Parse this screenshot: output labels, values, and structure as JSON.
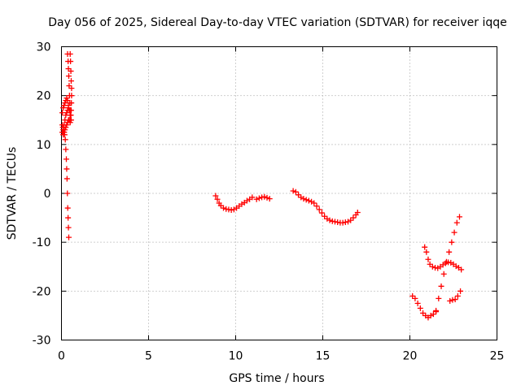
{
  "chart_data": {
    "type": "scatter",
    "title": "Day 056 of 2025, Sidereal Day-to-day VTEC variation (SDTVAR) for receiver iqqe",
    "xlabel": "GPS time / hours",
    "ylabel": "SDTVAR / TECUs",
    "xlim": [
      0,
      25
    ],
    "ylim": [
      -30,
      30
    ],
    "xticks": [
      "0",
      "5",
      "10",
      "15",
      "20",
      "25"
    ],
    "yticks": [
      "-30",
      "-20",
      "-10",
      "0",
      "10",
      "20",
      "30"
    ],
    "grid": true,
    "marker": "plus",
    "color": "#ff0000",
    "series": [
      {
        "name": "early-spike-a",
        "x": [
          0.35,
          0.38,
          0.4,
          0.42,
          0.44,
          0.46,
          0.48,
          0.5,
          0.52,
          0.55
        ],
        "y": [
          28.5,
          27,
          25.5,
          24,
          22,
          20,
          18.5,
          17,
          16,
          15
        ]
      },
      {
        "name": "early-spike-b",
        "x": [
          0.5,
          0.52,
          0.54,
          0.56,
          0.58,
          0.58,
          0.57,
          0.56,
          0.54,
          0.52
        ],
        "y": [
          28.5,
          27,
          25,
          23,
          21.5,
          20,
          18.5,
          17,
          16,
          15
        ]
      },
      {
        "name": "early-spike-c",
        "x": [
          0.05,
          0.1,
          0.15,
          0.2,
          0.25,
          0.3,
          0.35,
          0.4,
          0.45,
          0.5,
          0.55
        ],
        "y": [
          16.5,
          17.5,
          18,
          18.5,
          19,
          19.5,
          19,
          18,
          17,
          16,
          15
        ]
      },
      {
        "name": "early-spike-d",
        "x": [
          0.05,
          0.1,
          0.15,
          0.2,
          0.25,
          0.3,
          0.35,
          0.4,
          0.45,
          0.5
        ],
        "y": [
          12.5,
          13,
          14,
          15,
          16,
          16.5,
          17,
          17.5,
          17,
          16
        ]
      },
      {
        "name": "early-spike-e",
        "x": [
          0.05,
          0.08,
          0.12,
          0.15,
          0.18,
          0.22,
          0.25,
          0.28,
          0.3,
          0.32,
          0.34,
          0.36,
          0.38,
          0.4,
          0.42
        ],
        "y": [
          14,
          13.5,
          13,
          12.5,
          12,
          11,
          9,
          7,
          5,
          3,
          0,
          -3,
          -5,
          -7,
          -9
        ]
      },
      {
        "name": "early-spike-f",
        "x": [
          0.1,
          0.15,
          0.2,
          0.25,
          0.3,
          0.35,
          0.4,
          0.45,
          0.5
        ],
        "y": [
          12,
          12.5,
          13,
          13.5,
          14,
          14.5,
          15,
          15,
          14.5
        ]
      },
      {
        "name": "segment-9h",
        "x": [
          8.85,
          8.95,
          9.05,
          9.15,
          9.3,
          9.45,
          9.6,
          9.75,
          9.9,
          10.05,
          10.2,
          10.35,
          10.5,
          10.65,
          10.8,
          10.95
        ],
        "y": [
          -0.5,
          -1.2,
          -2,
          -2.5,
          -3,
          -3.2,
          -3.3,
          -3.4,
          -3.3,
          -3,
          -2.6,
          -2.2,
          -1.9,
          -1.5,
          -1.2,
          -0.8
        ]
      },
      {
        "name": "segment-11h",
        "x": [
          11.2,
          11.35,
          11.5,
          11.65,
          11.8,
          11.95
        ],
        "y": [
          -1.2,
          -1,
          -0.8,
          -0.7,
          -0.9,
          -1.1
        ]
      },
      {
        "name": "segment-13h",
        "x": [
          13.3,
          13.45,
          13.6,
          13.75,
          13.9,
          14.05,
          14.2,
          14.35,
          14.5,
          14.65,
          14.8,
          14.95,
          15.1,
          15.25,
          15.4,
          15.55,
          15.7,
          15.85,
          16.0,
          16.15,
          16.3,
          16.45,
          16.6,
          16.75,
          16.9,
          17.0
        ],
        "y": [
          0.5,
          0.3,
          -0.3,
          -0.8,
          -1.1,
          -1.3,
          -1.5,
          -1.7,
          -2,
          -2.6,
          -3.3,
          -4,
          -4.7,
          -5.2,
          -5.5,
          -5.7,
          -5.8,
          -5.9,
          -6,
          -6,
          -5.9,
          -5.8,
          -5.5,
          -5,
          -4.4,
          -3.9
        ]
      },
      {
        "name": "segment-20h-dip",
        "x": [
          20.15,
          20.3,
          20.45,
          20.6,
          20.75,
          20.9,
          21.05,
          21.2,
          21.35,
          21.5
        ],
        "y": [
          -21,
          -21.5,
          -22.5,
          -23.5,
          -24.5,
          -25,
          -25.4,
          -25,
          -24.7,
          -24.2
        ]
      },
      {
        "name": "segment-21h-rise",
        "x": [
          21.5,
          21.65,
          21.8,
          21.95,
          22.1,
          22.25,
          22.4,
          22.55,
          22.7,
          22.85
        ],
        "y": [
          -24,
          -21.5,
          -19,
          -16.5,
          -14,
          -12,
          -10,
          -8,
          -6,
          -4.8
        ]
      },
      {
        "name": "segment-21h-upper",
        "x": [
          20.85,
          20.95,
          21.05,
          21.15,
          21.3,
          21.45,
          21.6,
          21.75,
          21.9,
          22.05,
          22.2,
          22.35,
          22.5,
          22.65,
          22.8,
          22.95
        ],
        "y": [
          -11,
          -12,
          -13.5,
          -14.5,
          -15,
          -15.2,
          -15.3,
          -15,
          -14.6,
          -14.3,
          -14.1,
          -14.2,
          -14.5,
          -14.9,
          -15.2,
          -15.6
        ]
      },
      {
        "name": "segment-22h-end",
        "x": [
          22.3,
          22.45,
          22.6,
          22.75,
          22.9
        ],
        "y": [
          -22,
          -21.8,
          -21.7,
          -21,
          -20
        ]
      }
    ]
  }
}
